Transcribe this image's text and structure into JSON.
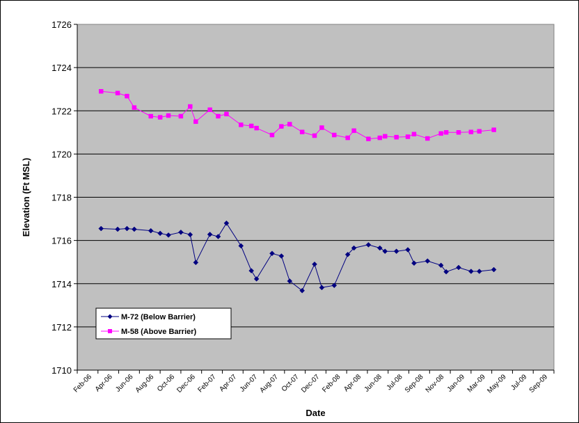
{
  "chart_data": {
    "type": "line",
    "xlabel": "Date",
    "ylabel": "Elevation (Ft MSL)",
    "ylim": [
      1710,
      1726
    ],
    "y_ticks": [
      1710,
      1712,
      1714,
      1716,
      1718,
      1720,
      1722,
      1724,
      1726
    ],
    "x_tick_labels": [
      "Feb-06",
      "Apr-06",
      "Jun-06",
      "Aug-06",
      "Oct-06",
      "Dec-06",
      "Feb-07",
      "Apr-07",
      "Jun-07",
      "Aug-07",
      "Oct-07",
      "Dec-07",
      "Feb-08",
      "Apr-08",
      "Jun-08",
      "Jul-08",
      "Sep-08",
      "Nov-08",
      "Jan-09",
      "Mar-09",
      "May-09",
      "Jul-09",
      "Sep-09"
    ],
    "grid": "horizontal",
    "plot_background": "#c0c0c0",
    "legend_position": "bottom-left",
    "series": [
      {
        "name": "M-72 (Below Barrier)",
        "color": "#000080",
        "marker": "diamond",
        "points": [
          [
            1.15,
            1716.55
          ],
          [
            1.95,
            1716.52
          ],
          [
            2.4,
            1716.55
          ],
          [
            2.75,
            1716.52
          ],
          [
            3.55,
            1716.45
          ],
          [
            4.0,
            1716.33
          ],
          [
            4.4,
            1716.25
          ],
          [
            5.0,
            1716.38
          ],
          [
            5.45,
            1716.27
          ],
          [
            5.72,
            1714.98
          ],
          [
            6.4,
            1716.28
          ],
          [
            6.8,
            1716.18
          ],
          [
            7.2,
            1716.8
          ],
          [
            7.9,
            1715.75
          ],
          [
            8.4,
            1714.6
          ],
          [
            8.65,
            1714.22
          ],
          [
            9.4,
            1715.4
          ],
          [
            9.85,
            1715.28
          ],
          [
            10.25,
            1714.12
          ],
          [
            10.85,
            1713.68
          ],
          [
            11.45,
            1714.9
          ],
          [
            11.8,
            1713.82
          ],
          [
            12.4,
            1713.92
          ],
          [
            13.05,
            1715.35
          ],
          [
            13.35,
            1715.65
          ],
          [
            14.05,
            1715.8
          ],
          [
            14.6,
            1715.65
          ],
          [
            14.85,
            1715.5
          ],
          [
            15.4,
            1715.5
          ],
          [
            15.95,
            1715.57
          ],
          [
            16.25,
            1714.95
          ],
          [
            16.9,
            1715.05
          ],
          [
            17.55,
            1714.85
          ],
          [
            17.8,
            1714.55
          ],
          [
            18.4,
            1714.75
          ],
          [
            19.0,
            1714.57
          ],
          [
            19.4,
            1714.57
          ],
          [
            20.1,
            1714.65
          ]
        ]
      },
      {
        "name": "M-58 (Above Barrier)",
        "color": "#ff00ff",
        "marker": "square",
        "points": [
          [
            1.15,
            1722.9
          ],
          [
            1.95,
            1722.82
          ],
          [
            2.4,
            1722.68
          ],
          [
            2.75,
            1722.15
          ],
          [
            3.55,
            1721.75
          ],
          [
            4.0,
            1721.7
          ],
          [
            4.4,
            1721.78
          ],
          [
            5.0,
            1721.75
          ],
          [
            5.45,
            1722.2
          ],
          [
            5.72,
            1721.5
          ],
          [
            6.4,
            1722.05
          ],
          [
            6.8,
            1721.75
          ],
          [
            7.2,
            1721.85
          ],
          [
            7.9,
            1721.35
          ],
          [
            8.4,
            1721.3
          ],
          [
            8.65,
            1721.2
          ],
          [
            9.4,
            1720.88
          ],
          [
            9.85,
            1721.28
          ],
          [
            10.25,
            1721.38
          ],
          [
            10.85,
            1721.02
          ],
          [
            11.45,
            1720.85
          ],
          [
            11.8,
            1721.22
          ],
          [
            12.4,
            1720.88
          ],
          [
            13.05,
            1720.75
          ],
          [
            13.35,
            1721.08
          ],
          [
            14.05,
            1720.7
          ],
          [
            14.6,
            1720.75
          ],
          [
            14.85,
            1720.82
          ],
          [
            15.4,
            1720.78
          ],
          [
            15.95,
            1720.8
          ],
          [
            16.25,
            1720.92
          ],
          [
            16.9,
            1720.72
          ],
          [
            17.55,
            1720.95
          ],
          [
            17.8,
            1721.0
          ],
          [
            18.4,
            1721.0
          ],
          [
            19.0,
            1721.02
          ],
          [
            19.4,
            1721.05
          ],
          [
            20.1,
            1721.12
          ]
        ]
      }
    ]
  }
}
